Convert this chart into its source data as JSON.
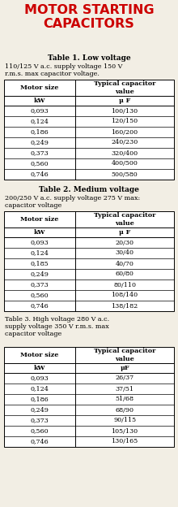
{
  "title": "MOTOR STARTING\nCAPACITORS",
  "title_color": "#CC0000",
  "bg_color": "#F2EEE4",
  "table1_title": "Table 1. Low voltage",
  "table1_subtitle": "110/125 V a.c. supply voltage 150 V\nr.m.s. max capacitor voltage.",
  "table1_col1_header": "Motor size",
  "table1_col2_header": "Typical capacitor\nvalue",
  "table1_col1_unit": "kW",
  "table1_col2_unit": "μ F",
  "table1_data": [
    [
      "0,093",
      "100/130"
    ],
    [
      "0,124",
      "120/150"
    ],
    [
      "0,186",
      "160/200"
    ],
    [
      "0,249",
      "240/230"
    ],
    [
      "0,373",
      "320/400"
    ],
    [
      "0,560",
      "400/500"
    ],
    [
      "0,746",
      "500/580"
    ]
  ],
  "table2_title": "Table 2. Medium voltage",
  "table2_subtitle": "200/250 V a.c. supply voltage 275 V max:\ncapacitor voltage",
  "table2_col1_header": "Motor size",
  "table2_col2_header": "Typical capacitor\nvalue",
  "table2_col1_unit": "kW",
  "table2_col2_unit": "μ F",
  "table2_data": [
    [
      "0,093",
      "20/30"
    ],
    [
      "0,124",
      "30/40"
    ],
    [
      "0,185",
      "40/70"
    ],
    [
      "0,249",
      "60/80"
    ],
    [
      "0,373",
      "80/110"
    ],
    [
      "0,560",
      "108/140"
    ],
    [
      "0,746",
      "138/182"
    ]
  ],
  "table3_title": "Table 3. High voltage 280 V a.c.\nsupply voltage 350 V r.m.s. max\ncapacitor voltage",
  "table3_col1_header": "Motor size",
  "table3_col2_header": "Typical capacitor\nvalue",
  "table3_col1_unit": "kW",
  "table3_col2_unit": "μF",
  "table3_data": [
    [
      "0,093",
      "26/37"
    ],
    [
      "0,124",
      "37/51"
    ],
    [
      "0,186",
      "51/68"
    ],
    [
      "0,249",
      "68/90"
    ],
    [
      "0,373",
      "90/115"
    ],
    [
      "0,560",
      "105/130"
    ],
    [
      "0,746",
      "130/165"
    ]
  ]
}
